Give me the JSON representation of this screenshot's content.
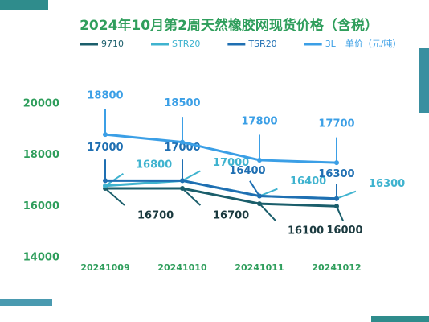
{
  "chart_data": {
    "type": "line",
    "title": "2024年10月第2周天然橡胶网现货价格（含税）",
    "unit": "单价（元/吨）",
    "categories": [
      "20241009",
      "20241010",
      "20241011",
      "20241012"
    ],
    "series": [
      {
        "name": "9710",
        "color": "#1b5e6b",
        "values": [
          16700,
          16700,
          16100,
          16000
        ]
      },
      {
        "name": "STR20",
        "color": "#3fb3cf",
        "values": [
          16800,
          17000,
          16400,
          16300
        ]
      },
      {
        "name": "TSR20",
        "color": "#1f6fb2",
        "values": [
          17000,
          17000,
          16400,
          16300
        ]
      },
      {
        "name": "3L",
        "color": "#3b9fe6",
        "values": [
          18800,
          18500,
          17800,
          17700
        ]
      }
    ],
    "ylim": [
      14000,
      21000
    ],
    "yticks": [
      14000,
      16000,
      18000,
      20000
    ]
  }
}
